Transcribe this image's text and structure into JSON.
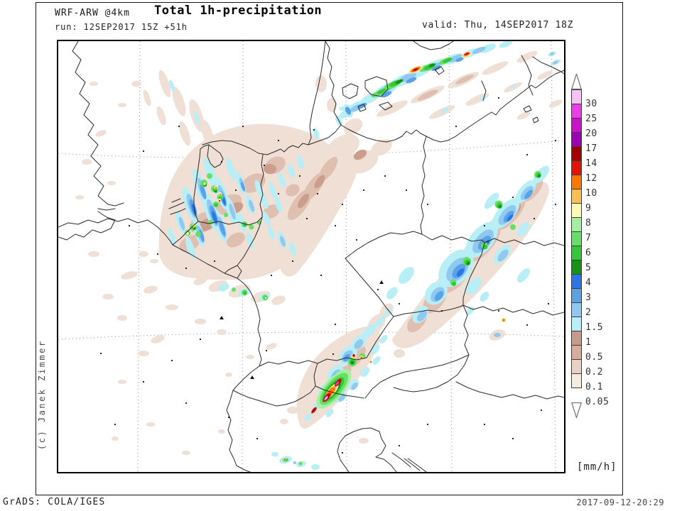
{
  "header": {
    "model": "WRF-ARW @4km",
    "title": "Total 1h-precipitation",
    "run_line": "run: 12SEP2017 15Z +51h",
    "valid_line": "valid: Thu, 14SEP2017 18Z"
  },
  "map": {
    "copyright": "(c) Janek Zimmer"
  },
  "legend": {
    "units_label": "[mm/h]",
    "entries": [
      {
        "label": "30",
        "color": "#f5c2f5"
      },
      {
        "label": "25",
        "color": "#ec3cec"
      },
      {
        "label": "20",
        "color": "#cc10cc"
      },
      {
        "label": "17",
        "color": "#9c00b4"
      },
      {
        "label": "14",
        "color": "#a40000"
      },
      {
        "label": "12",
        "color": "#e01400"
      },
      {
        "label": "10",
        "color": "#fa7800"
      },
      {
        "label": "9",
        "color": "#fcbe50"
      },
      {
        "label": "8",
        "color": "#fdfab4"
      },
      {
        "label": "7",
        "color": "#a4f0a0"
      },
      {
        "label": "6",
        "color": "#64e164"
      },
      {
        "label": "5",
        "color": "#35c835"
      },
      {
        "label": "4",
        "color": "#129612"
      },
      {
        "label": "3",
        "color": "#2a76e6"
      },
      {
        "label": "2",
        "color": "#58a2e8"
      },
      {
        "label": "1.5",
        "color": "#90c8f0"
      },
      {
        "label": "1",
        "color": "#b8eef6"
      },
      {
        "label": "0.5",
        "color": "#c69a8b"
      },
      {
        "label": "0.2",
        "color": "#d5ae9f"
      },
      {
        "label": "0.1",
        "color": "#e9d1c5"
      },
      {
        "label": "0.05",
        "color": "#f6ebe1"
      }
    ]
  },
  "footer": {
    "left": "GrADS: COLA/IGES",
    "right": "2017-09-12-20:29"
  }
}
